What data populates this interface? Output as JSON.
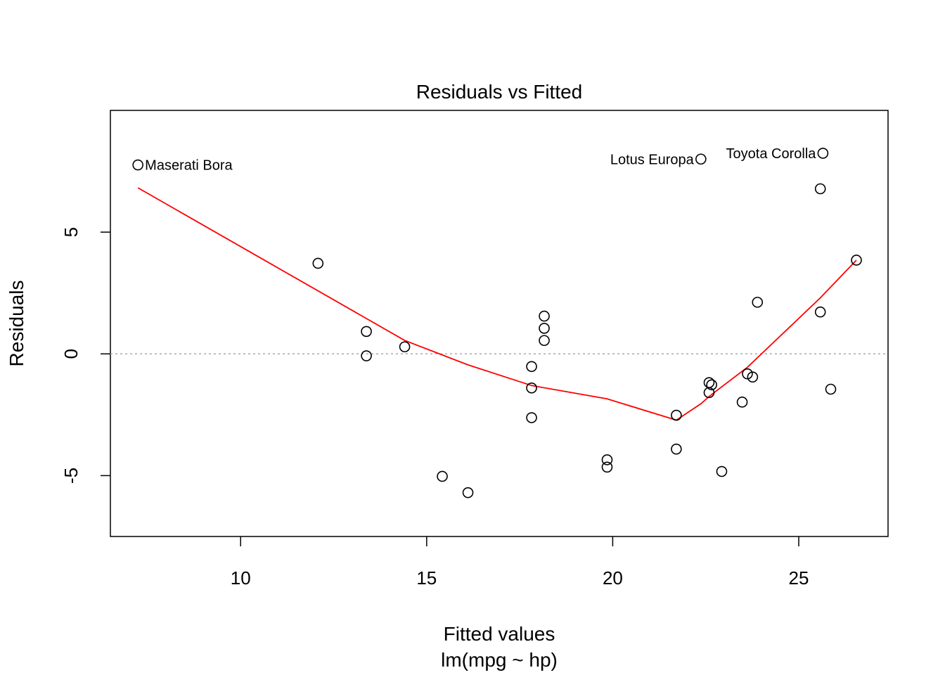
{
  "chart_data": {
    "type": "scatter",
    "title": "Residuals vs Fitted",
    "xlabel": "Fitted values",
    "xlabel_sub": "lm(mpg ~ hp)",
    "ylabel": "Residuals",
    "xlim": [
      6.5,
      27.4
    ],
    "ylim": [
      -7.5,
      10
    ],
    "x_ticks": [
      10,
      15,
      20,
      25
    ],
    "y_ticks": [
      -5,
      0,
      5
    ],
    "grid": false,
    "reference_line": {
      "y": 0,
      "style": "dotted",
      "color": "#aaaaaa"
    },
    "points": [
      {
        "x": 7.24,
        "y": 7.76,
        "label": "Maserati Bora"
      },
      {
        "x": 22.37,
        "y": 8.0,
        "label": "Lotus Europa"
      },
      {
        "x": 25.65,
        "y": 8.24,
        "label": "Toyota Corolla"
      },
      {
        "x": 25.58,
        "y": 6.78
      },
      {
        "x": 12.08,
        "y": 3.72
      },
      {
        "x": 26.55,
        "y": 3.85
      },
      {
        "x": 23.89,
        "y": 2.12
      },
      {
        "x": 25.58,
        "y": 1.72
      },
      {
        "x": 13.38,
        "y": 0.92
      },
      {
        "x": 13.38,
        "y": -0.08
      },
      {
        "x": 14.41,
        "y": 0.29
      },
      {
        "x": 18.16,
        "y": 1.55
      },
      {
        "x": 18.16,
        "y": 1.05
      },
      {
        "x": 18.16,
        "y": 0.55
      },
      {
        "x": 17.82,
        "y": -0.52
      },
      {
        "x": 17.82,
        "y": -1.4
      },
      {
        "x": 17.82,
        "y": -2.62
      },
      {
        "x": 15.42,
        "y": -5.03
      },
      {
        "x": 16.11,
        "y": -5.7
      },
      {
        "x": 19.85,
        "y": -4.35
      },
      {
        "x": 19.85,
        "y": -4.65
      },
      {
        "x": 21.71,
        "y": -2.52
      },
      {
        "x": 21.71,
        "y": -3.91
      },
      {
        "x": 22.59,
        "y": -1.18
      },
      {
        "x": 22.66,
        "y": -1.27
      },
      {
        "x": 22.59,
        "y": -1.59
      },
      {
        "x": 22.93,
        "y": -4.83
      },
      {
        "x": 23.48,
        "y": -1.98
      },
      {
        "x": 23.62,
        "y": -0.82
      },
      {
        "x": 23.76,
        "y": -0.95
      },
      {
        "x": 25.86,
        "y": -1.45
      }
    ],
    "smooth_line": {
      "color": "#ff0000",
      "x": [
        7.24,
        14.41,
        16.11,
        17.82,
        19.85,
        21.71,
        22.37,
        22.59,
        23.62,
        25.58,
        26.55
      ],
      "y": [
        6.82,
        0.55,
        -0.45,
        -1.3,
        -1.85,
        -2.72,
        -2.05,
        -1.75,
        -0.55,
        2.3,
        3.85
      ]
    }
  }
}
